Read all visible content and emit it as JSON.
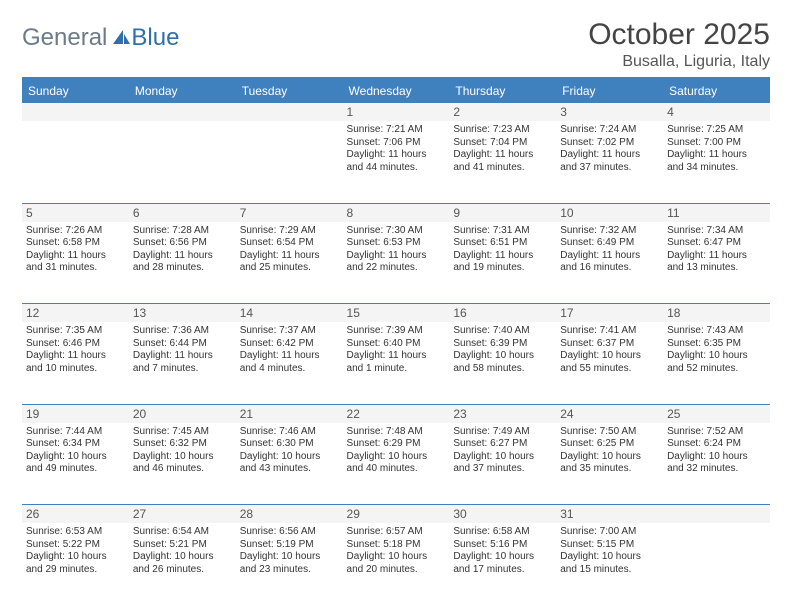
{
  "logo": {
    "text1": "General",
    "text2": "Blue"
  },
  "header": {
    "title": "October 2025",
    "location": "Busalla, Liguria, Italy"
  },
  "colors": {
    "accent": "#3f80bf",
    "bg": "#ffffff",
    "rowShade": "#f4f4f4",
    "text": "#333333"
  },
  "weekdays": [
    "Sunday",
    "Monday",
    "Tuesday",
    "Wednesday",
    "Thursday",
    "Friday",
    "Saturday"
  ],
  "weeks": [
    [
      null,
      null,
      null,
      {
        "n": "1",
        "sr": "7:21 AM",
        "ss": "7:06 PM",
        "dl": "11 hours and 44 minutes."
      },
      {
        "n": "2",
        "sr": "7:23 AM",
        "ss": "7:04 PM",
        "dl": "11 hours and 41 minutes."
      },
      {
        "n": "3",
        "sr": "7:24 AM",
        "ss": "7:02 PM",
        "dl": "11 hours and 37 minutes."
      },
      {
        "n": "4",
        "sr": "7:25 AM",
        "ss": "7:00 PM",
        "dl": "11 hours and 34 minutes."
      }
    ],
    [
      {
        "n": "5",
        "sr": "7:26 AM",
        "ss": "6:58 PM",
        "dl": "11 hours and 31 minutes."
      },
      {
        "n": "6",
        "sr": "7:28 AM",
        "ss": "6:56 PM",
        "dl": "11 hours and 28 minutes."
      },
      {
        "n": "7",
        "sr": "7:29 AM",
        "ss": "6:54 PM",
        "dl": "11 hours and 25 minutes."
      },
      {
        "n": "8",
        "sr": "7:30 AM",
        "ss": "6:53 PM",
        "dl": "11 hours and 22 minutes."
      },
      {
        "n": "9",
        "sr": "7:31 AM",
        "ss": "6:51 PM",
        "dl": "11 hours and 19 minutes."
      },
      {
        "n": "10",
        "sr": "7:32 AM",
        "ss": "6:49 PM",
        "dl": "11 hours and 16 minutes."
      },
      {
        "n": "11",
        "sr": "7:34 AM",
        "ss": "6:47 PM",
        "dl": "11 hours and 13 minutes."
      }
    ],
    [
      {
        "n": "12",
        "sr": "7:35 AM",
        "ss": "6:46 PM",
        "dl": "11 hours and 10 minutes."
      },
      {
        "n": "13",
        "sr": "7:36 AM",
        "ss": "6:44 PM",
        "dl": "11 hours and 7 minutes."
      },
      {
        "n": "14",
        "sr": "7:37 AM",
        "ss": "6:42 PM",
        "dl": "11 hours and 4 minutes."
      },
      {
        "n": "15",
        "sr": "7:39 AM",
        "ss": "6:40 PM",
        "dl": "11 hours and 1 minute."
      },
      {
        "n": "16",
        "sr": "7:40 AM",
        "ss": "6:39 PM",
        "dl": "10 hours and 58 minutes."
      },
      {
        "n": "17",
        "sr": "7:41 AM",
        "ss": "6:37 PM",
        "dl": "10 hours and 55 minutes."
      },
      {
        "n": "18",
        "sr": "7:43 AM",
        "ss": "6:35 PM",
        "dl": "10 hours and 52 minutes."
      }
    ],
    [
      {
        "n": "19",
        "sr": "7:44 AM",
        "ss": "6:34 PM",
        "dl": "10 hours and 49 minutes."
      },
      {
        "n": "20",
        "sr": "7:45 AM",
        "ss": "6:32 PM",
        "dl": "10 hours and 46 minutes."
      },
      {
        "n": "21",
        "sr": "7:46 AM",
        "ss": "6:30 PM",
        "dl": "10 hours and 43 minutes."
      },
      {
        "n": "22",
        "sr": "7:48 AM",
        "ss": "6:29 PM",
        "dl": "10 hours and 40 minutes."
      },
      {
        "n": "23",
        "sr": "7:49 AM",
        "ss": "6:27 PM",
        "dl": "10 hours and 37 minutes."
      },
      {
        "n": "24",
        "sr": "7:50 AM",
        "ss": "6:25 PM",
        "dl": "10 hours and 35 minutes."
      },
      {
        "n": "25",
        "sr": "7:52 AM",
        "ss": "6:24 PM",
        "dl": "10 hours and 32 minutes."
      }
    ],
    [
      {
        "n": "26",
        "sr": "6:53 AM",
        "ss": "5:22 PM",
        "dl": "10 hours and 29 minutes."
      },
      {
        "n": "27",
        "sr": "6:54 AM",
        "ss": "5:21 PM",
        "dl": "10 hours and 26 minutes."
      },
      {
        "n": "28",
        "sr": "6:56 AM",
        "ss": "5:19 PM",
        "dl": "10 hours and 23 minutes."
      },
      {
        "n": "29",
        "sr": "6:57 AM",
        "ss": "5:18 PM",
        "dl": "10 hours and 20 minutes."
      },
      {
        "n": "30",
        "sr": "6:58 AM",
        "ss": "5:16 PM",
        "dl": "10 hours and 17 minutes."
      },
      {
        "n": "31",
        "sr": "7:00 AM",
        "ss": "5:15 PM",
        "dl": "10 hours and 15 minutes."
      },
      null
    ]
  ],
  "labels": {
    "sunrise": "Sunrise:",
    "sunset": "Sunset:",
    "daylight": "Daylight:"
  }
}
